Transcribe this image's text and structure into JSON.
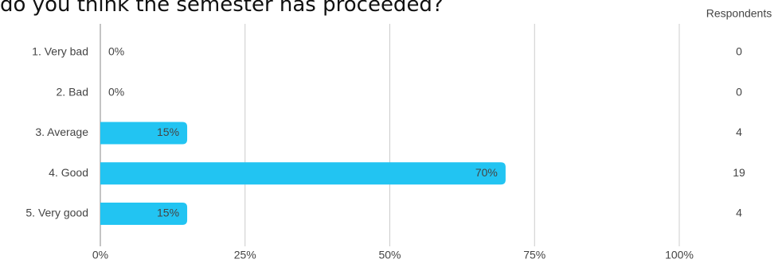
{
  "chart_data": {
    "type": "bar",
    "orientation": "horizontal",
    "title": "do you think the semester has proceeded?",
    "categories": [
      "1. Very bad",
      "2. Bad",
      "3. Average",
      "4. Good",
      "5. Very good"
    ],
    "values": [
      0,
      0,
      15,
      70,
      15
    ],
    "value_labels": [
      "0%",
      "0%",
      "15%",
      "70%",
      "15%"
    ],
    "color": "#22c4f2",
    "xlim": [
      0,
      100
    ],
    "xticks": [
      {
        "value": 0,
        "label": "0%"
      },
      {
        "value": 25,
        "label": "25%"
      },
      {
        "value": 50,
        "label": "50%"
      },
      {
        "value": 75,
        "label": "75%"
      },
      {
        "value": 100,
        "label": "100%"
      }
    ],
    "grid": true,
    "respondents_label": "Respondents",
    "respondents": [
      0,
      0,
      4,
      19,
      4
    ]
  }
}
